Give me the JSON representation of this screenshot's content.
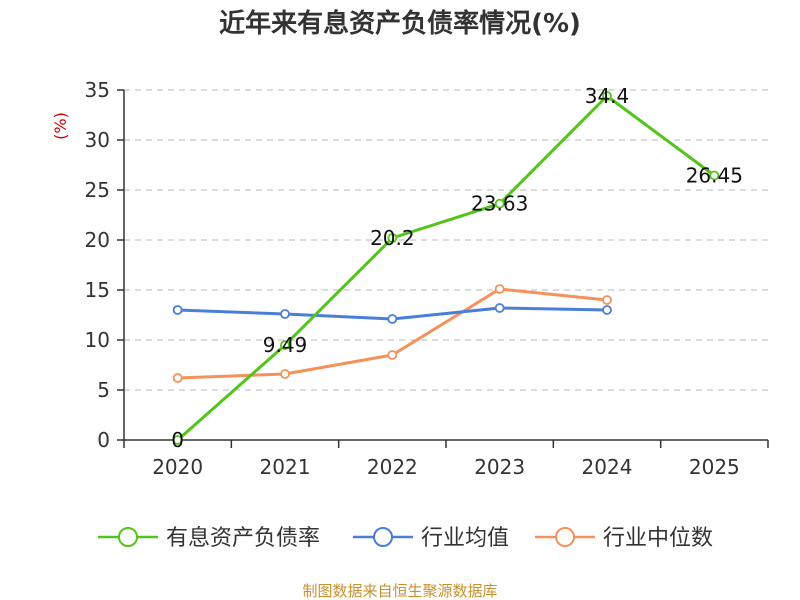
{
  "chart_data": {
    "type": "line",
    "title": "近年来有息资产负债率情况(%)",
    "ylabel": "(%)",
    "xlabel": "",
    "categories": [
      "2020",
      "2021",
      "2022",
      "2023",
      "2024",
      "2025"
    ],
    "ylim": [
      0,
      35
    ],
    "yticks": [
      0,
      5,
      10,
      15,
      20,
      25,
      30,
      35
    ],
    "grid": true,
    "legend_position": "bottom",
    "series": [
      {
        "name": "有息资产负债率",
        "color": "#52c41a",
        "values": [
          0,
          9.49,
          20.2,
          23.63,
          34.4,
          26.45
        ],
        "labels": [
          "0",
          "9.49",
          "20.2",
          "23.63",
          "34.4",
          "26.45"
        ]
      },
      {
        "name": "行业均值",
        "color": "#4a7fd9",
        "values": [
          13.0,
          12.6,
          12.1,
          13.2,
          13.0,
          null
        ]
      },
      {
        "name": "行业中位数",
        "color": "#f5915a",
        "values": [
          6.2,
          6.6,
          8.5,
          15.1,
          14.0,
          null
        ]
      }
    ],
    "source": "制图数据来自恒生聚源数据库"
  }
}
